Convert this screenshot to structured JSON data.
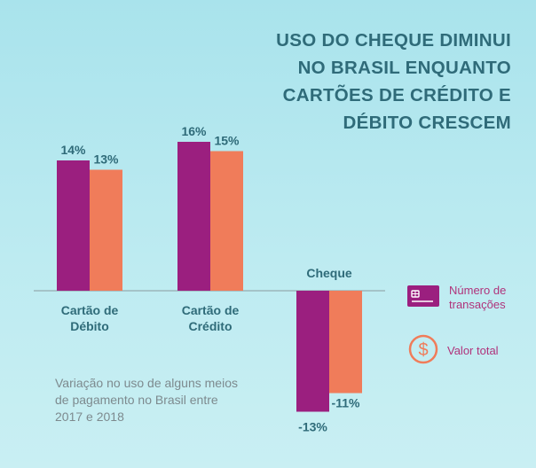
{
  "title_lines": [
    "USO DO CHEQUE DIMINUI",
    "NO BRASIL ENQUANTO",
    "CARTÕES DE CRÉDITO E",
    "DÉBITO CRESCEM"
  ],
  "caption": "Variação no uso de alguns meios de pagamento no Brasil entre 2017 e 2018",
  "legend": [
    {
      "label": "Número de transações",
      "icon": "credit-card-icon",
      "color": "#9b1f7f"
    },
    {
      "label": "Valor total",
      "icon": "dollar-coin-icon",
      "color": "#f07c5a"
    }
  ],
  "chart_data": {
    "type": "bar",
    "categories": [
      "Cartão de Débito",
      "Cartão de Crédito",
      "Cheque"
    ],
    "series": [
      {
        "name": "Número de transações",
        "values": [
          14,
          16,
          -13
        ],
        "labels": [
          "14%",
          "16%",
          "-13%"
        ],
        "color": "#9b1f7f"
      },
      {
        "name": "Valor total",
        "values": [
          13,
          15,
          -11
        ],
        "labels": [
          "13%",
          "15%",
          "-11%"
        ],
        "color": "#f07c5a"
      }
    ],
    "unit": "%",
    "grid": false
  }
}
